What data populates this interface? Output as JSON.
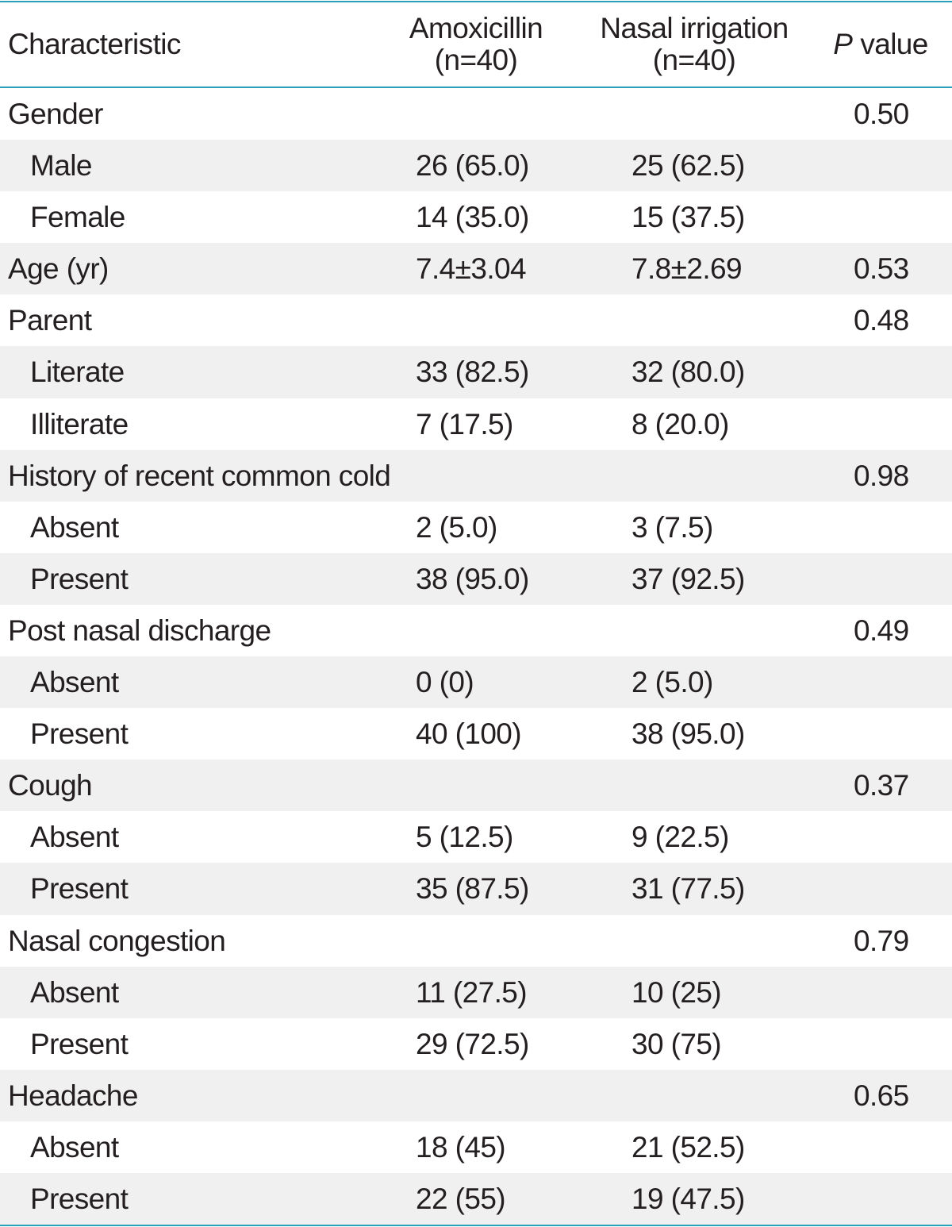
{
  "table": {
    "headers": {
      "characteristic": "Characteristic",
      "amoxicillin_line1": "Amoxicillin",
      "amoxicillin_line2": "(n=40)",
      "nasal_line1": "Nasal irrigation",
      "nasal_line2": "(n=40)",
      "p_italic": "P",
      "p_rest": "value"
    },
    "rows": [
      {
        "label": "Gender",
        "amox": "",
        "nasal": "",
        "p": "0.50",
        "sub": false,
        "shade": false
      },
      {
        "label": "Male",
        "amox": "26 (65.0)",
        "nasal": "25 (62.5)",
        "p": "",
        "sub": true,
        "shade": true
      },
      {
        "label": "Female",
        "amox": "14 (35.0)",
        "nasal": "15 (37.5)",
        "p": "",
        "sub": true,
        "shade": false
      },
      {
        "label": "Age (yr)",
        "amox": "7.4±3.04",
        "nasal": "7.8±2.69",
        "p": "0.53",
        "sub": false,
        "shade": true
      },
      {
        "label": "Parent",
        "amox": "",
        "nasal": "",
        "p": "0.48",
        "sub": false,
        "shade": false
      },
      {
        "label": "Literate",
        "amox": "33 (82.5)",
        "nasal": "32 (80.0)",
        "p": "",
        "sub": true,
        "shade": true
      },
      {
        "label": "Illiterate",
        "amox": "7 (17.5)",
        "nasal": "8 (20.0)",
        "p": "",
        "sub": true,
        "shade": false
      },
      {
        "label": "History of recent common cold",
        "amox": "",
        "nasal": "",
        "p": "0.98",
        "sub": false,
        "shade": true
      },
      {
        "label": "Absent",
        "amox": "2 (5.0)",
        "nasal": "3 (7.5)",
        "p": "",
        "sub": true,
        "shade": false
      },
      {
        "label": "Present",
        "amox": "38 (95.0)",
        "nasal": "37 (92.5)",
        "p": "",
        "sub": true,
        "shade": true
      },
      {
        "label": "Post nasal discharge",
        "amox": "",
        "nasal": "",
        "p": "0.49",
        "sub": false,
        "shade": false
      },
      {
        "label": "Absent",
        "amox": "0 (0)",
        "nasal": "2 (5.0)",
        "p": "",
        "sub": true,
        "shade": true
      },
      {
        "label": "Present",
        "amox": "40 (100)",
        "nasal": "38 (95.0)",
        "p": "",
        "sub": true,
        "shade": false
      },
      {
        "label": "Cough",
        "amox": "",
        "nasal": "",
        "p": "0.37",
        "sub": false,
        "shade": true
      },
      {
        "label": "Absent",
        "amox": "5 (12.5)",
        "nasal": "9 (22.5)",
        "p": "",
        "sub": true,
        "shade": false
      },
      {
        "label": "Present",
        "amox": "35 (87.5)",
        "nasal": "31 (77.5)",
        "p": "",
        "sub": true,
        "shade": true
      },
      {
        "label": "Nasal congestion",
        "amox": "",
        "nasal": "",
        "p": "0.79",
        "sub": false,
        "shade": false
      },
      {
        "label": "Absent",
        "amox": "11 (27.5)",
        "nasal": "10 (25)",
        "p": "",
        "sub": true,
        "shade": true
      },
      {
        "label": "Present",
        "amox": "29 (72.5)",
        "nasal": "30 (75)",
        "p": "",
        "sub": true,
        "shade": false
      },
      {
        "label": "Headache",
        "amox": "",
        "nasal": "",
        "p": "0.65",
        "sub": false,
        "shade": true
      },
      {
        "label": "Absent",
        "amox": "18 (45)",
        "nasal": "21 (52.5)",
        "p": "",
        "sub": true,
        "shade": false
      },
      {
        "label": "Present",
        "amox": "22 (55)",
        "nasal": "19 (47.5)",
        "p": "",
        "sub": true,
        "shade": true
      }
    ]
  }
}
